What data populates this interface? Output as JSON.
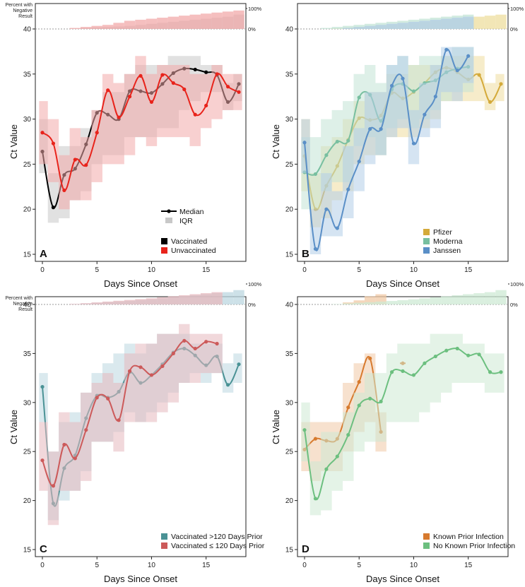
{
  "figure": {
    "ylabel": "Ct Value",
    "xlabel": "Days Since Onset",
    "neg_label": "Percent with Negative Result",
    "neg_ticks": [
      "100%",
      "0%"
    ],
    "legend_median": "Median",
    "legend_iqr": "IQR"
  },
  "chart_data": [
    {
      "panel": "A",
      "type": "line",
      "xlabel": "Days Since Onset",
      "ylabel": "Ct Value",
      "ylim": [
        15,
        40
      ],
      "xlim": [
        0,
        18
      ],
      "xticks": [
        0,
        5,
        10,
        15
      ],
      "yticks": [
        15,
        20,
        25,
        30,
        35,
        40
      ],
      "show_median_iqr_legend": true,
      "series": [
        {
          "name": "Vaccinated",
          "color": "#000000",
          "band": "#c8c8c8",
          "x": [
            0,
            1,
            2,
            3,
            4,
            5,
            6,
            7,
            8,
            9,
            10,
            11,
            12,
            13,
            14,
            15,
            16,
            17,
            18
          ],
          "values": [
            26.4,
            20.2,
            23.8,
            24.5,
            27.2,
            30.7,
            30.5,
            30.0,
            33.1,
            33.1,
            32.9,
            33.9,
            35.1,
            35.6,
            35.5,
            35.2,
            34.9,
            31.9,
            33.9
          ],
          "iqr_low": [
            24,
            18.5,
            19,
            21,
            22,
            25,
            26,
            26,
            28,
            28,
            28,
            29,
            29,
            31,
            32,
            33,
            33,
            31,
            32
          ],
          "iqr_high": [
            30,
            24,
            27,
            27,
            29,
            31,
            33,
            33,
            35,
            36,
            36,
            36,
            37,
            37,
            37,
            36,
            36,
            34,
            35
          ],
          "neg_pct": [
            0,
            0,
            0,
            2,
            5,
            8,
            10,
            12,
            15,
            20,
            25,
            30,
            35,
            40,
            45,
            50,
            55,
            60,
            70
          ]
        },
        {
          "name": "Unvaccinated",
          "color": "#e8231b",
          "band": "#f2a9a9",
          "x": [
            0,
            1,
            2,
            3,
            4,
            5,
            6,
            7,
            8,
            9,
            10,
            11,
            12,
            13,
            14,
            15,
            16,
            17,
            18
          ],
          "values": [
            28.5,
            27.3,
            22.1,
            25.5,
            24.9,
            28.5,
            33.2,
            30.2,
            32.5,
            34.8,
            31.9,
            34.9,
            34.0,
            33.3,
            30.5,
            31.5,
            35.0,
            33.6,
            33.0
          ],
          "iqr_low": [
            25,
            23,
            20,
            21,
            21,
            23,
            25,
            25,
            26,
            28,
            27,
            28,
            28,
            28,
            27,
            29,
            30,
            31,
            31
          ],
          "iqr_high": [
            32,
            30,
            26,
            29,
            28,
            31,
            35,
            34,
            35,
            37,
            35,
            36,
            36,
            36,
            35,
            35,
            36,
            35,
            35
          ],
          "neg_pct": [
            0,
            0,
            0,
            5,
            10,
            15,
            20,
            30,
            40,
            45,
            50,
            55,
            60,
            65,
            70,
            75,
            80,
            85,
            90
          ]
        }
      ]
    },
    {
      "panel": "B",
      "type": "line",
      "xlabel": "Days Since Onset",
      "ylabel": "Ct Value",
      "ylim": [
        15,
        40
      ],
      "xlim": [
        0,
        18
      ],
      "xticks": [
        0,
        5,
        10,
        15
      ],
      "yticks": [
        15,
        20,
        25,
        30,
        35,
        40
      ],
      "show_median_iqr_legend": false,
      "series": [
        {
          "name": "Pfizer",
          "color": "#d4aa3a",
          "band": "#eedd9e",
          "x": [
            0,
            1,
            2,
            3,
            4,
            5,
            6,
            7,
            8,
            9,
            10,
            11,
            12,
            13,
            14,
            15,
            16,
            17,
            18
          ],
          "values": [
            25.9,
            20.0,
            22.6,
            24.8,
            27.7,
            30.1,
            29.9,
            30.4,
            32.9,
            32.3,
            33.0,
            34.0,
            35.2,
            35.7,
            35.2,
            34.4,
            34.9,
            31.9,
            33.9
          ],
          "iqr_low": [
            22,
            18,
            19,
            21,
            22,
            25,
            26,
            26,
            28,
            28,
            28,
            29,
            30,
            32,
            32,
            32,
            32,
            31,
            32
          ],
          "iqr_high": [
            30,
            24,
            27,
            28,
            30,
            32,
            33,
            33,
            35,
            35,
            36,
            36,
            36,
            37,
            37,
            37,
            37,
            34,
            35
          ],
          "neg_pct": [
            0,
            0,
            0,
            3,
            6,
            10,
            13,
            17,
            20,
            25,
            30,
            35,
            40,
            45,
            50,
            55,
            60,
            65,
            70
          ]
        },
        {
          "name": "Moderna",
          "color": "#78bfa0",
          "band": "#c3e4d5",
          "x": [
            0,
            1,
            2,
            3,
            4,
            5,
            6,
            7,
            8,
            9,
            10,
            11,
            12,
            13,
            14,
            15
          ],
          "values": [
            24.1,
            23.9,
            26.0,
            27.5,
            27.6,
            32.4,
            32.7,
            29.8,
            33.3,
            33.9,
            33.1,
            34.0,
            34.3,
            35.2,
            35.6,
            35.8
          ],
          "iqr_low": [
            20,
            20,
            22,
            23,
            23,
            27,
            28,
            26,
            29,
            30,
            29,
            30,
            31,
            32,
            33,
            33
          ],
          "iqr_high": [
            28,
            28,
            30,
            31,
            32,
            35,
            36,
            34,
            36,
            37,
            36,
            37,
            37,
            37,
            38,
            38
          ],
          "neg_pct": [
            0,
            0,
            5,
            10,
            15,
            20,
            25,
            30,
            35,
            40,
            45,
            50,
            55,
            60,
            65,
            70
          ]
        },
        {
          "name": "Janssen",
          "color": "#5a8fc7",
          "band": "#b3cde7",
          "x": [
            0,
            1,
            2,
            3,
            4,
            5,
            6,
            7,
            8,
            9,
            10,
            11,
            12,
            13,
            14,
            15
          ],
          "values": [
            27.4,
            15.6,
            20.0,
            17.9,
            22.2,
            25.3,
            28.9,
            28.9,
            33.7,
            34.5,
            27.3,
            30.5,
            32.5,
            37.7,
            35.4,
            37.0
          ],
          "iqr_low": [
            24,
            15,
            17,
            17,
            19,
            22,
            25,
            26,
            28,
            29,
            25,
            28,
            29,
            33,
            32,
            34
          ],
          "iqr_high": [
            30,
            20,
            24,
            22,
            27,
            29,
            33,
            33,
            36,
            37,
            31,
            34,
            36,
            38,
            38,
            38
          ],
          "neg_pct": [
            0,
            0,
            0,
            0,
            5,
            10,
            15,
            20,
            25,
            30,
            35,
            40,
            45,
            50,
            55,
            60
          ]
        }
      ]
    },
    {
      "panel": "C",
      "type": "line",
      "xlabel": "Days Since Onset",
      "ylabel": "Ct Value",
      "ylim": [
        15,
        40
      ],
      "xlim": [
        0,
        18
      ],
      "xticks": [
        0,
        5,
        10,
        15
      ],
      "yticks": [
        15,
        20,
        25,
        30,
        35,
        40
      ],
      "show_median_iqr_legend": false,
      "series": [
        {
          "name": "Vaccinated >120 Days Prior",
          "color": "#4a9295",
          "band": "#bcd7e0",
          "x": [
            0,
            1,
            2,
            3,
            4,
            5,
            6,
            7,
            8,
            9,
            10,
            11,
            12,
            13,
            14,
            15,
            16,
            17,
            18
          ],
          "values": [
            31.6,
            19.7,
            23.3,
            24.6,
            28.4,
            30.7,
            30.5,
            31.1,
            33.1,
            32.0,
            32.8,
            33.9,
            35.1,
            35.5,
            34.8,
            33.8,
            34.7,
            31.8,
            33.9
          ],
          "iqr_low": [
            28,
            18,
            20,
            21,
            23,
            26,
            26,
            27,
            29,
            28,
            29,
            30,
            31,
            32,
            33,
            32,
            33,
            31,
            32
          ],
          "iqr_high": [
            33,
            25,
            28,
            29,
            31,
            33,
            34,
            35,
            36,
            35,
            36,
            37,
            37,
            37,
            36,
            36,
            36,
            34,
            35
          ],
          "neg_pct": [
            0,
            0,
            0,
            2,
            5,
            8,
            11,
            14,
            17,
            21,
            25,
            30,
            35,
            40,
            45,
            50,
            55,
            60,
            70
          ]
        },
        {
          "name": "Vaccinated ≤ 120 Days Prior",
          "color": "#cc5a5a",
          "band": "#e6b8bd",
          "x": [
            0,
            1,
            2,
            3,
            4,
            5,
            6,
            7,
            8,
            9,
            10,
            11,
            12,
            13,
            14,
            15,
            16
          ],
          "values": [
            24.1,
            21.5,
            25.7,
            24.3,
            27.2,
            30.5,
            30.4,
            28.2,
            33.2,
            33.6,
            32.8,
            33.7,
            35.0,
            36.3,
            35.5,
            36.2,
            36.0
          ],
          "iqr_low": [
            21,
            17.5,
            21,
            21,
            22,
            26,
            26,
            25,
            28,
            28,
            28,
            29,
            30,
            32,
            32,
            33,
            33
          ],
          "iqr_high": [
            28,
            25,
            29,
            28,
            31,
            32,
            33,
            32,
            35,
            36,
            36,
            37,
            37,
            38,
            37,
            37,
            37
          ],
          "neg_pct": [
            0,
            0,
            0,
            3,
            6,
            10,
            14,
            18,
            22,
            26,
            30,
            35,
            40,
            45,
            50,
            55,
            60
          ]
        }
      ]
    },
    {
      "panel": "D",
      "type": "line",
      "xlabel": "Days Since Onset",
      "ylabel": "Ct Value",
      "ylim": [
        15,
        40
      ],
      "xlim": [
        0,
        18
      ],
      "xticks": [
        0,
        5,
        10,
        15
      ],
      "yticks": [
        15,
        20,
        25,
        30,
        35,
        40
      ],
      "show_median_iqr_legend": false,
      "series": [
        {
          "name": "Known Prior Infection",
          "color": "#d77a2e",
          "band": "#f0c9a6",
          "x": [
            0,
            1,
            2,
            3,
            4,
            5,
            6,
            7
          ],
          "values": [
            25.2,
            26.3,
            26.1,
            26.3,
            29.5,
            32.1,
            34.5,
            27.0
          ],
          "iqr_low": [
            23,
            22,
            23,
            23,
            25,
            27,
            28,
            25
          ],
          "iqr_high": [
            28,
            28,
            28,
            28,
            32,
            34,
            35,
            29
          ],
          "neg_pct": [
            0,
            0,
            0,
            0,
            10,
            20,
            40,
            50
          ],
          "extra_point": {
            "x": 9,
            "value": 34.0
          }
        },
        {
          "name": "No Known Prior Infection",
          "color": "#6cbf7f",
          "band": "#cde9d4",
          "x": [
            0,
            1,
            2,
            3,
            4,
            5,
            6,
            7,
            8,
            9,
            10,
            11,
            12,
            13,
            14,
            15,
            16,
            17,
            18
          ],
          "values": [
            27.2,
            20.2,
            23.2,
            24.5,
            26.7,
            29.7,
            30.4,
            30.1,
            33.1,
            33.2,
            32.8,
            34.0,
            34.7,
            35.3,
            35.5,
            34.8,
            34.9,
            33.1,
            33.1
          ],
          "iqr_low": [
            24,
            18.5,
            19,
            21,
            22,
            25,
            26,
            26,
            28,
            28,
            28,
            29,
            30,
            31,
            32,
            32,
            32,
            31,
            31
          ],
          "iqr_high": [
            30,
            24,
            27,
            27,
            29,
            31,
            33,
            33,
            35,
            36,
            36,
            36,
            37,
            37,
            37,
            36,
            36,
            35,
            35
          ],
          "neg_pct": [
            0,
            0,
            0,
            2,
            5,
            8,
            11,
            14,
            17,
            21,
            25,
            30,
            35,
            40,
            45,
            50,
            55,
            60,
            70
          ]
        }
      ]
    }
  ]
}
